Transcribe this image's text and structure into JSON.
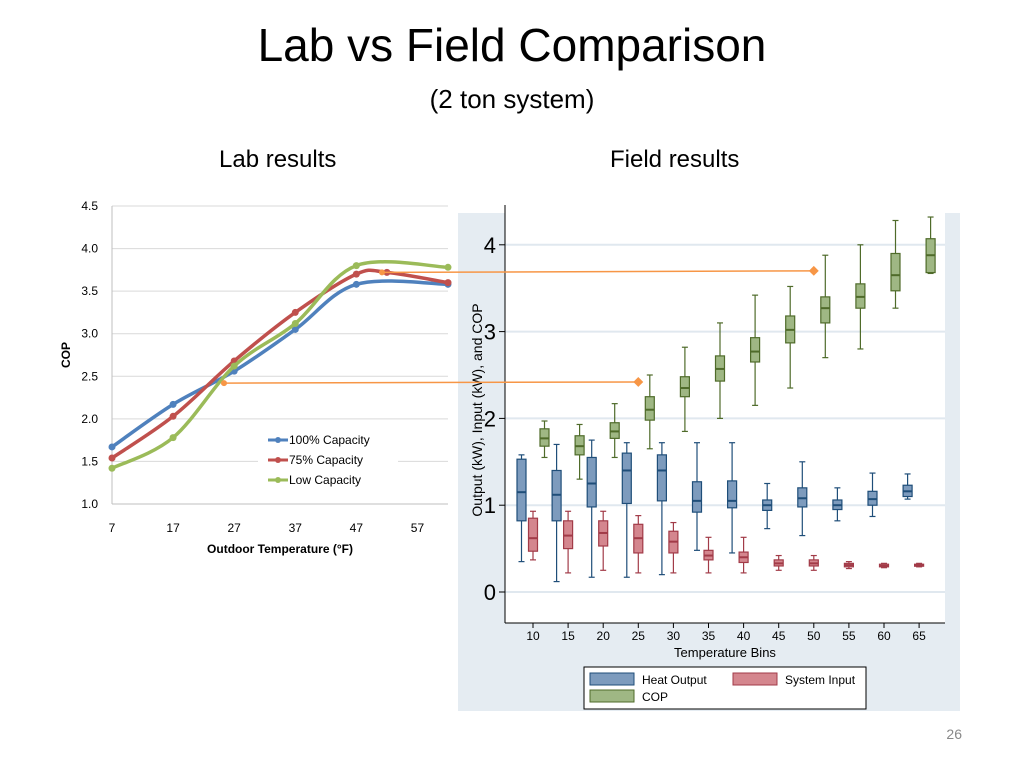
{
  "slide": {
    "title": "Lab vs Field Comparison",
    "subtitle": "(2 ton system)",
    "page_number": "26",
    "lab_label": "Lab results",
    "field_label": "Field results"
  },
  "chart_data": [
    {
      "type": "line",
      "title": "",
      "xlabel": "Outdoor Temperature (°F)",
      "ylabel": "COP",
      "x_ticks": [
        7,
        17,
        27,
        37,
        47,
        57
      ],
      "y_ticks": [
        "1.0",
        "1.5",
        "2.0",
        "2.5",
        "3.0",
        "3.5",
        "4.0",
        "4.5"
      ],
      "xlim": [
        7,
        62
      ],
      "ylim": [
        1.0,
        4.5
      ],
      "grid": "horizontal",
      "legend": "center-right",
      "series": [
        {
          "name": "100% Capacity",
          "color": "#4f81bd",
          "points": [
            [
              7,
              1.67
            ],
            [
              17,
              2.17
            ],
            [
              27,
              2.56
            ],
            [
              37,
              3.05
            ],
            [
              47,
              3.58
            ],
            [
              62,
              3.58
            ]
          ]
        },
        {
          "name": "75% Capacity",
          "color": "#c0504d",
          "points": [
            [
              7,
              1.54
            ],
            [
              17,
              2.03
            ],
            [
              27,
              2.68
            ],
            [
              37,
              3.25
            ],
            [
              47,
              3.7
            ],
            [
              52,
              3.72
            ],
            [
              62,
              3.6
            ]
          ]
        },
        {
          "name": "Low Capacity",
          "color": "#9bbb59",
          "points": [
            [
              7,
              1.42
            ],
            [
              17,
              1.78
            ],
            [
              27,
              2.62
            ],
            [
              37,
              3.12
            ],
            [
              47,
              3.8
            ],
            [
              62,
              3.78
            ]
          ]
        }
      ]
    },
    {
      "type": "box",
      "xlabel": "Temperature Bins",
      "ylabel": "Output (kW), Input (kW), and COP",
      "categories": [
        "10",
        "15",
        "20",
        "25",
        "30",
        "35",
        "40",
        "45",
        "50",
        "55",
        "60",
        "65"
      ],
      "y_ticks": [
        "0",
        "1",
        "2",
        "3",
        "4"
      ],
      "ylim": [
        -0.3,
        4.4
      ],
      "legend": "bottom",
      "reference_points": [
        {
          "x": "50",
          "y": 3.7
        },
        {
          "x": "25",
          "y": 2.42
        }
      ],
      "series": [
        {
          "name": "Heat Output",
          "fill": "#7d9bbd",
          "stroke": "#1f4e79",
          "boxes": [
            {
              "min": 0.35,
              "q1": 0.82,
              "med": 1.15,
              "q3": 1.53,
              "max": 1.58
            },
            {
              "min": 0.12,
              "q1": 0.82,
              "med": 1.12,
              "q3": 1.4,
              "max": 1.7
            },
            {
              "min": 0.17,
              "q1": 0.98,
              "med": 1.25,
              "q3": 1.55,
              "max": 1.75
            },
            {
              "min": 0.17,
              "q1": 1.02,
              "med": 1.4,
              "q3": 1.6,
              "max": 1.72
            },
            {
              "min": 0.2,
              "q1": 1.05,
              "med": 1.4,
              "q3": 1.58,
              "max": 1.72
            },
            {
              "min": 0.48,
              "q1": 0.92,
              "med": 1.05,
              "q3": 1.27,
              "max": 1.72
            },
            {
              "min": 0.45,
              "q1": 0.97,
              "med": 1.05,
              "q3": 1.28,
              "max": 1.72
            },
            {
              "min": 0.73,
              "q1": 0.94,
              "med": 1.0,
              "q3": 1.06,
              "max": 1.25
            },
            {
              "min": 0.65,
              "q1": 0.98,
              "med": 1.08,
              "q3": 1.2,
              "max": 1.5
            },
            {
              "min": 0.82,
              "q1": 0.95,
              "med": 1.0,
              "q3": 1.06,
              "max": 1.2
            },
            {
              "min": 0.87,
              "q1": 1.0,
              "med": 1.07,
              "q3": 1.16,
              "max": 1.37
            },
            {
              "min": 1.07,
              "q1": 1.1,
              "med": 1.16,
              "q3": 1.23,
              "max": 1.36
            }
          ]
        },
        {
          "name": "System Input",
          "fill": "#d4868e",
          "stroke": "#a23b48",
          "boxes": [
            {
              "min": 0.37,
              "q1": 0.47,
              "med": 0.62,
              "q3": 0.85,
              "max": 0.93
            },
            {
              "min": 0.22,
              "q1": 0.5,
              "med": 0.65,
              "q3": 0.82,
              "max": 0.93
            },
            {
              "min": 0.25,
              "q1": 0.53,
              "med": 0.68,
              "q3": 0.82,
              "max": 0.93
            },
            {
              "min": 0.22,
              "q1": 0.45,
              "med": 0.62,
              "q3": 0.78,
              "max": 0.88
            },
            {
              "min": 0.22,
              "q1": 0.45,
              "med": 0.58,
              "q3": 0.7,
              "max": 0.8
            },
            {
              "min": 0.22,
              "q1": 0.37,
              "med": 0.42,
              "q3": 0.48,
              "max": 0.63
            },
            {
              "min": 0.22,
              "q1": 0.34,
              "med": 0.4,
              "q3": 0.46,
              "max": 0.63
            },
            {
              "min": 0.25,
              "q1": 0.3,
              "med": 0.33,
              "q3": 0.37,
              "max": 0.42
            },
            {
              "min": 0.25,
              "q1": 0.3,
              "med": 0.33,
              "q3": 0.37,
              "max": 0.42
            },
            {
              "min": 0.27,
              "q1": 0.29,
              "med": 0.31,
              "q3": 0.33,
              "max": 0.35
            },
            {
              "min": 0.28,
              "q1": 0.29,
              "med": 0.3,
              "q3": 0.32,
              "max": 0.33
            },
            {
              "min": 0.29,
              "q1": 0.3,
              "med": 0.31,
              "q3": 0.32,
              "max": 0.33
            }
          ]
        },
        {
          "name": "COP",
          "fill": "#9fb784",
          "stroke": "#4f6b2a",
          "boxes": [
            {
              "min": 1.55,
              "q1": 1.68,
              "med": 1.77,
              "q3": 1.88,
              "max": 1.97
            },
            {
              "min": 1.3,
              "q1": 1.58,
              "med": 1.68,
              "q3": 1.8,
              "max": 1.93
            },
            {
              "min": 1.55,
              "q1": 1.77,
              "med": 1.85,
              "q3": 1.95,
              "max": 2.17
            },
            {
              "min": 1.65,
              "q1": 1.98,
              "med": 2.1,
              "q3": 2.25,
              "max": 2.5
            },
            {
              "min": 1.85,
              "q1": 2.25,
              "med": 2.35,
              "q3": 2.48,
              "max": 2.82
            },
            {
              "min": 2.0,
              "q1": 2.43,
              "med": 2.57,
              "q3": 2.72,
              "max": 3.1
            },
            {
              "min": 2.15,
              "q1": 2.65,
              "med": 2.77,
              "q3": 2.93,
              "max": 3.42
            },
            {
              "min": 2.35,
              "q1": 2.87,
              "med": 3.02,
              "q3": 3.18,
              "max": 3.52
            },
            {
              "min": 2.7,
              "q1": 3.1,
              "med": 3.27,
              "q3": 3.4,
              "max": 3.88
            },
            {
              "min": 2.8,
              "q1": 3.27,
              "med": 3.4,
              "q3": 3.55,
              "max": 4.0
            },
            {
              "min": 3.27,
              "q1": 3.47,
              "med": 3.65,
              "q3": 3.9,
              "max": 4.28
            },
            {
              "min": 3.67,
              "q1": 3.68,
              "med": 3.88,
              "q3": 4.07,
              "max": 4.32
            }
          ]
        }
      ]
    }
  ]
}
